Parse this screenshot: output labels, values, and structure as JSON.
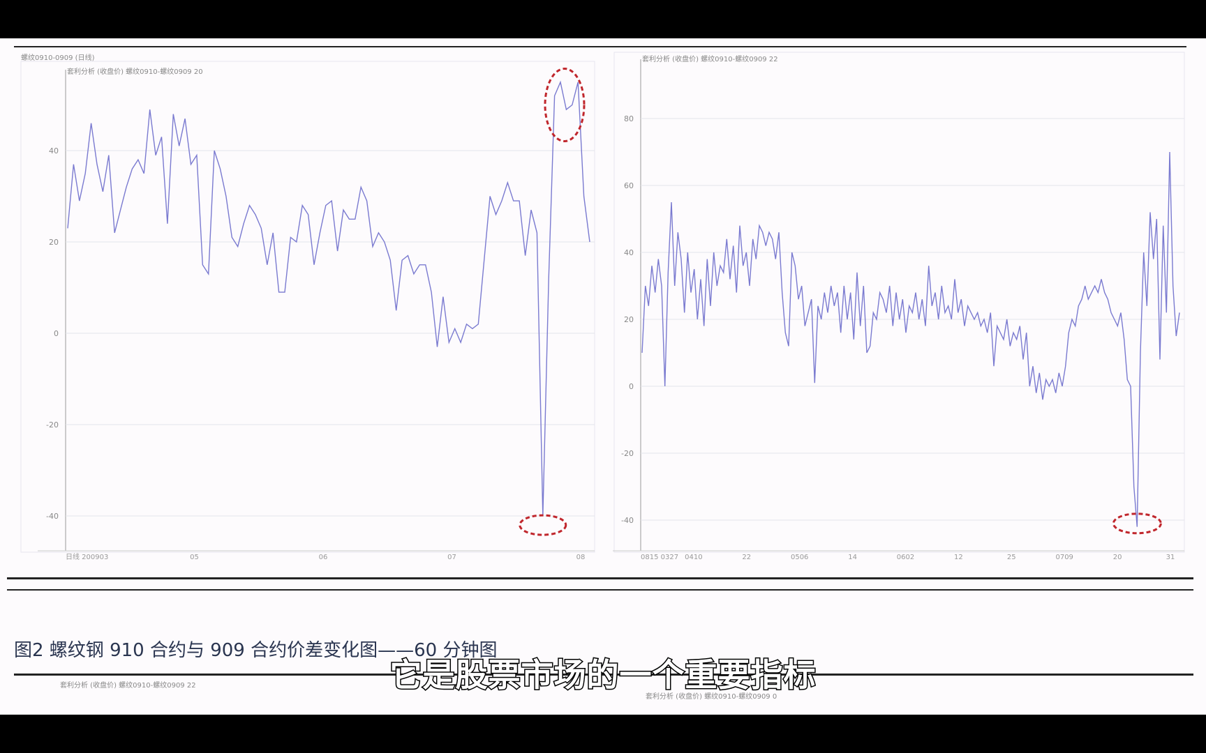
{
  "colors": {
    "line": "#7a7ad0",
    "annotation": "#c0262c",
    "grid": "#e4e4ea",
    "axis": "#999"
  },
  "caption": "图2   螺纹钢 910 合约与 909 合约价差变化图——60 分钟图",
  "subtitle": "它是股票市场的一个重要指标",
  "lower_panels": {
    "left_header": "套利分析 (收盘价) 螺纹0910-螺纹0909  22",
    "right_header": "套利分析 (收盘价) 螺纹0910-螺纹0909  0"
  },
  "chart_data": [
    {
      "type": "line",
      "window_title": "螺纹0910-0909 (日线)",
      "title": "套利分析 (收盘价) 螺纹0910-螺纹0909  20",
      "ylim": [
        -47,
        60
      ],
      "yticks": [
        40,
        20,
        0,
        -20,
        -40
      ],
      "xticks": [
        "日线 200903",
        "05",
        "06",
        "07",
        "08"
      ],
      "grid": true,
      "annotations": [
        "dashed red ellipse around peak ~55",
        "dashed red ellipse around trough ~-40"
      ],
      "values": [
        23,
        37,
        29,
        35,
        46,
        37,
        31,
        39,
        22,
        27,
        32,
        36,
        38,
        35,
        49,
        39,
        43,
        24,
        48,
        41,
        47,
        37,
        39,
        15,
        13,
        40,
        36,
        30,
        21,
        19,
        24,
        28,
        26,
        23,
        15,
        22,
        9,
        9,
        21,
        20,
        28,
        26,
        15,
        22,
        28,
        29,
        18,
        27,
        25,
        25,
        32,
        29,
        19,
        22,
        20,
        16,
        5,
        16,
        17,
        13,
        15,
        15,
        9,
        -3,
        8,
        -2,
        1,
        -2,
        2,
        1,
        2,
        16,
        30,
        26,
        29,
        33,
        29,
        29,
        17,
        27,
        22,
        -40,
        12,
        52,
        55,
        49,
        50,
        55,
        30,
        20
      ]
    },
    {
      "type": "line",
      "title": "套利分析 (收盘价) 螺纹0910-螺纹0909  22",
      "ylim": [
        -48,
        95
      ],
      "yticks": [
        80,
        60,
        40,
        20,
        0,
        -20,
        -40
      ],
      "xticks": [
        "0815 0327",
        "0410",
        "22",
        "0506",
        "14",
        "0602",
        "12",
        "25",
        "0709",
        "20",
        "31"
      ],
      "grid": true,
      "annotations": [
        "dashed red ellipse around trough ~-42"
      ],
      "values": [
        10,
        30,
        24,
        36,
        28,
        38,
        30,
        0,
        34,
        55,
        30,
        46,
        38,
        22,
        40,
        28,
        35,
        20,
        32,
        18,
        38,
        24,
        40,
        30,
        36,
        34,
        44,
        32,
        42,
        28,
        48,
        36,
        40,
        30,
        44,
        38,
        48,
        46,
        42,
        46,
        44,
        38,
        46,
        28,
        16,
        12,
        40,
        36,
        26,
        30,
        18,
        22,
        26,
        1,
        24,
        20,
        28,
        22,
        30,
        24,
        28,
        16,
        30,
        20,
        28,
        14,
        34,
        18,
        30,
        10,
        12,
        22,
        20,
        28,
        26,
        22,
        30,
        18,
        28,
        20,
        26,
        16,
        24,
        22,
        28,
        20,
        26,
        18,
        36,
        24,
        28,
        20,
        30,
        22,
        24,
        20,
        32,
        22,
        26,
        18,
        24,
        22,
        20,
        22,
        18,
        20,
        16,
        22,
        6,
        18,
        16,
        14,
        20,
        12,
        16,
        14,
        18,
        8,
        16,
        0,
        6,
        -2,
        4,
        -4,
        2,
        0,
        2,
        -2,
        4,
        0,
        6,
        16,
        20,
        18,
        24,
        26,
        30,
        26,
        28,
        30,
        28,
        32,
        28,
        26,
        22,
        20,
        18,
        22,
        14,
        2,
        0,
        -30,
        -42,
        10,
        40,
        24,
        52,
        38,
        50,
        8,
        48,
        22,
        70,
        30,
        15,
        22
      ]
    }
  ]
}
